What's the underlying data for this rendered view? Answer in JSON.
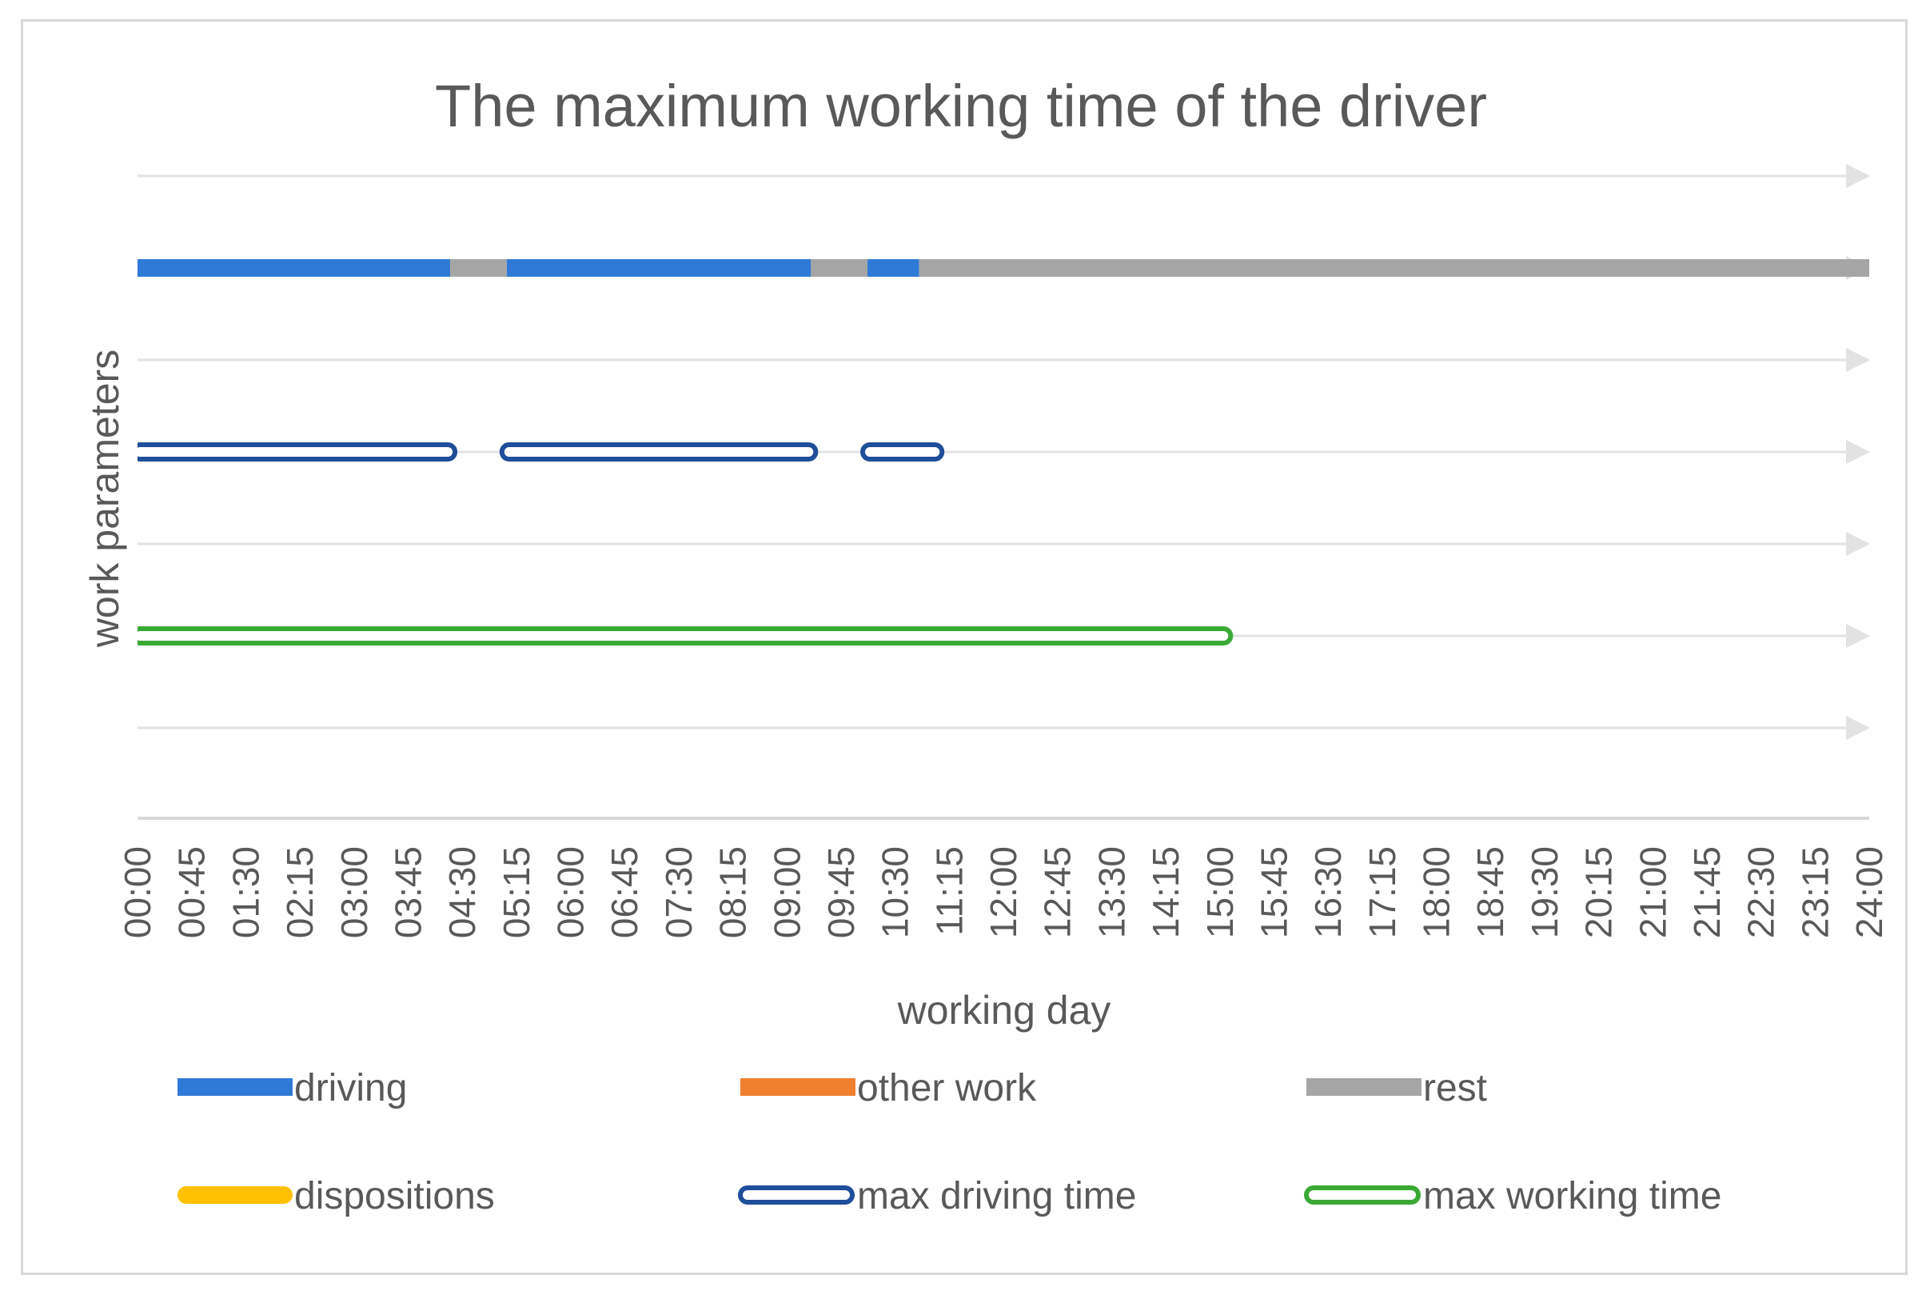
{
  "chart_data": {
    "type": "bar",
    "title": "The maximum working time of the driver",
    "xlabel": "working day",
    "ylabel": "work parameters",
    "x_unit": "time of day (hh:mm)",
    "xlim": [
      "00:00",
      "24:00"
    ],
    "x_ticks": [
      "00:00",
      "00:45",
      "01:30",
      "02:15",
      "03:00",
      "03:45",
      "04:30",
      "05:15",
      "06:00",
      "06:45",
      "07:30",
      "08:15",
      "09:00",
      "09:45",
      "10:30",
      "11:15",
      "12:00",
      "12:45",
      "13:30",
      "14:15",
      "15:00",
      "15:45",
      "16:30",
      "17:15",
      "18:00",
      "18:45",
      "19:30",
      "20:15",
      "21:00",
      "21:45",
      "22:30",
      "23:15",
      "24:00"
    ],
    "row_count": 7,
    "grid": true,
    "legend_position": "bottom",
    "series": [
      {
        "name": "driving",
        "color": "#2f7ad6",
        "style": "solid",
        "row": 1,
        "segments": [
          {
            "start": "00:00",
            "end": "04:20"
          },
          {
            "start": "05:07",
            "end": "09:20"
          },
          {
            "start": "10:07",
            "end": "10:50"
          }
        ]
      },
      {
        "name": "rest",
        "color": "#a5a5a5",
        "style": "solid",
        "row": 1,
        "segments": [
          {
            "start": "04:20",
            "end": "05:07"
          },
          {
            "start": "09:20",
            "end": "10:07"
          },
          {
            "start": "10:50",
            "end": "24:00"
          }
        ]
      },
      {
        "name": "other work",
        "color": "#f07f2e",
        "style": "solid",
        "row": null,
        "segments": []
      },
      {
        "name": "dispositions",
        "color": "#ffc000",
        "style": "rounded",
        "row": null,
        "segments": []
      },
      {
        "name": "max driving time",
        "color": "#1f4e9a",
        "style": "outline",
        "row": 3,
        "segments": [
          {
            "start": "00:00",
            "end": "04:20"
          },
          {
            "start": "05:07",
            "end": "09:20"
          },
          {
            "start": "10:07",
            "end": "11:05"
          }
        ]
      },
      {
        "name": "max working time",
        "color": "#3aa935",
        "style": "outline",
        "row": 5,
        "segments": [
          {
            "start": "00:00",
            "end": "15:05"
          }
        ]
      }
    ],
    "legend": [
      "driving",
      "other work",
      "rest",
      "dispositions",
      "max driving time",
      "max working time"
    ]
  },
  "colors": {
    "gridline": "#e2e2e2",
    "axis": "#d9d9d9",
    "text": "#595959"
  }
}
